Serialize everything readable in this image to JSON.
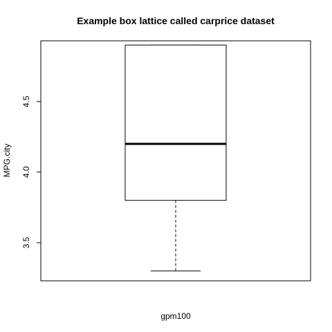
{
  "chart_data": {
    "type": "box",
    "title": "Example box lattice called carprice dataset",
    "xlabel": "gpm100",
    "ylabel": "MPG.city",
    "ylim": [
      3.23,
      4.93
    ],
    "yticks": [
      3.5,
      4.0,
      4.5
    ],
    "ytick_labels": [
      "3.5",
      "4.0",
      "4.5"
    ],
    "box": {
      "whisker_low": 3.3,
      "q1": 3.8,
      "median": 4.2,
      "q3": 4.9,
      "whisker_high": 4.9
    },
    "grid": false,
    "colors": {
      "stroke": "#000000",
      "background": "#ffffff"
    }
  }
}
